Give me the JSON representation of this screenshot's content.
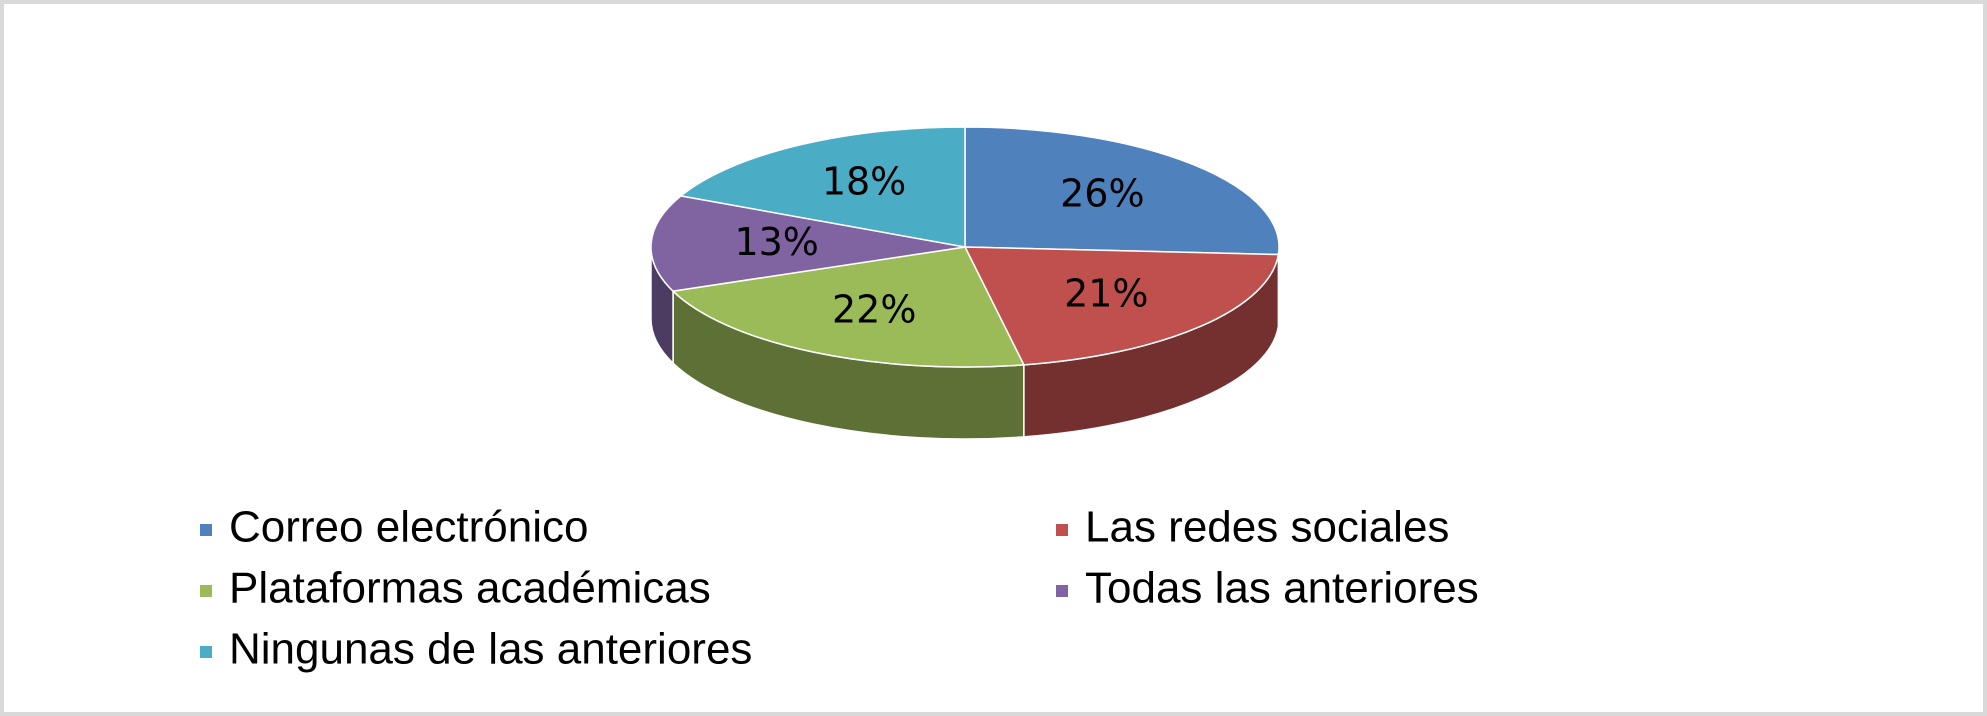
{
  "chart_data": {
    "type": "pie",
    "categories": [
      "Correo electrónico",
      "Las redes sociales",
      "Plataformas académicas",
      "Todas las anteriores",
      "Ningunas de las anteriores"
    ],
    "values": [
      26,
      21,
      22,
      13,
      18
    ],
    "value_labels": [
      "26%",
      "21%",
      "22%",
      "13%",
      "18%"
    ],
    "colors": [
      "#4f81bd",
      "#c0504d",
      "#9bbb59",
      "#8064a2",
      "#4bacc6"
    ],
    "legend": "bottom"
  }
}
